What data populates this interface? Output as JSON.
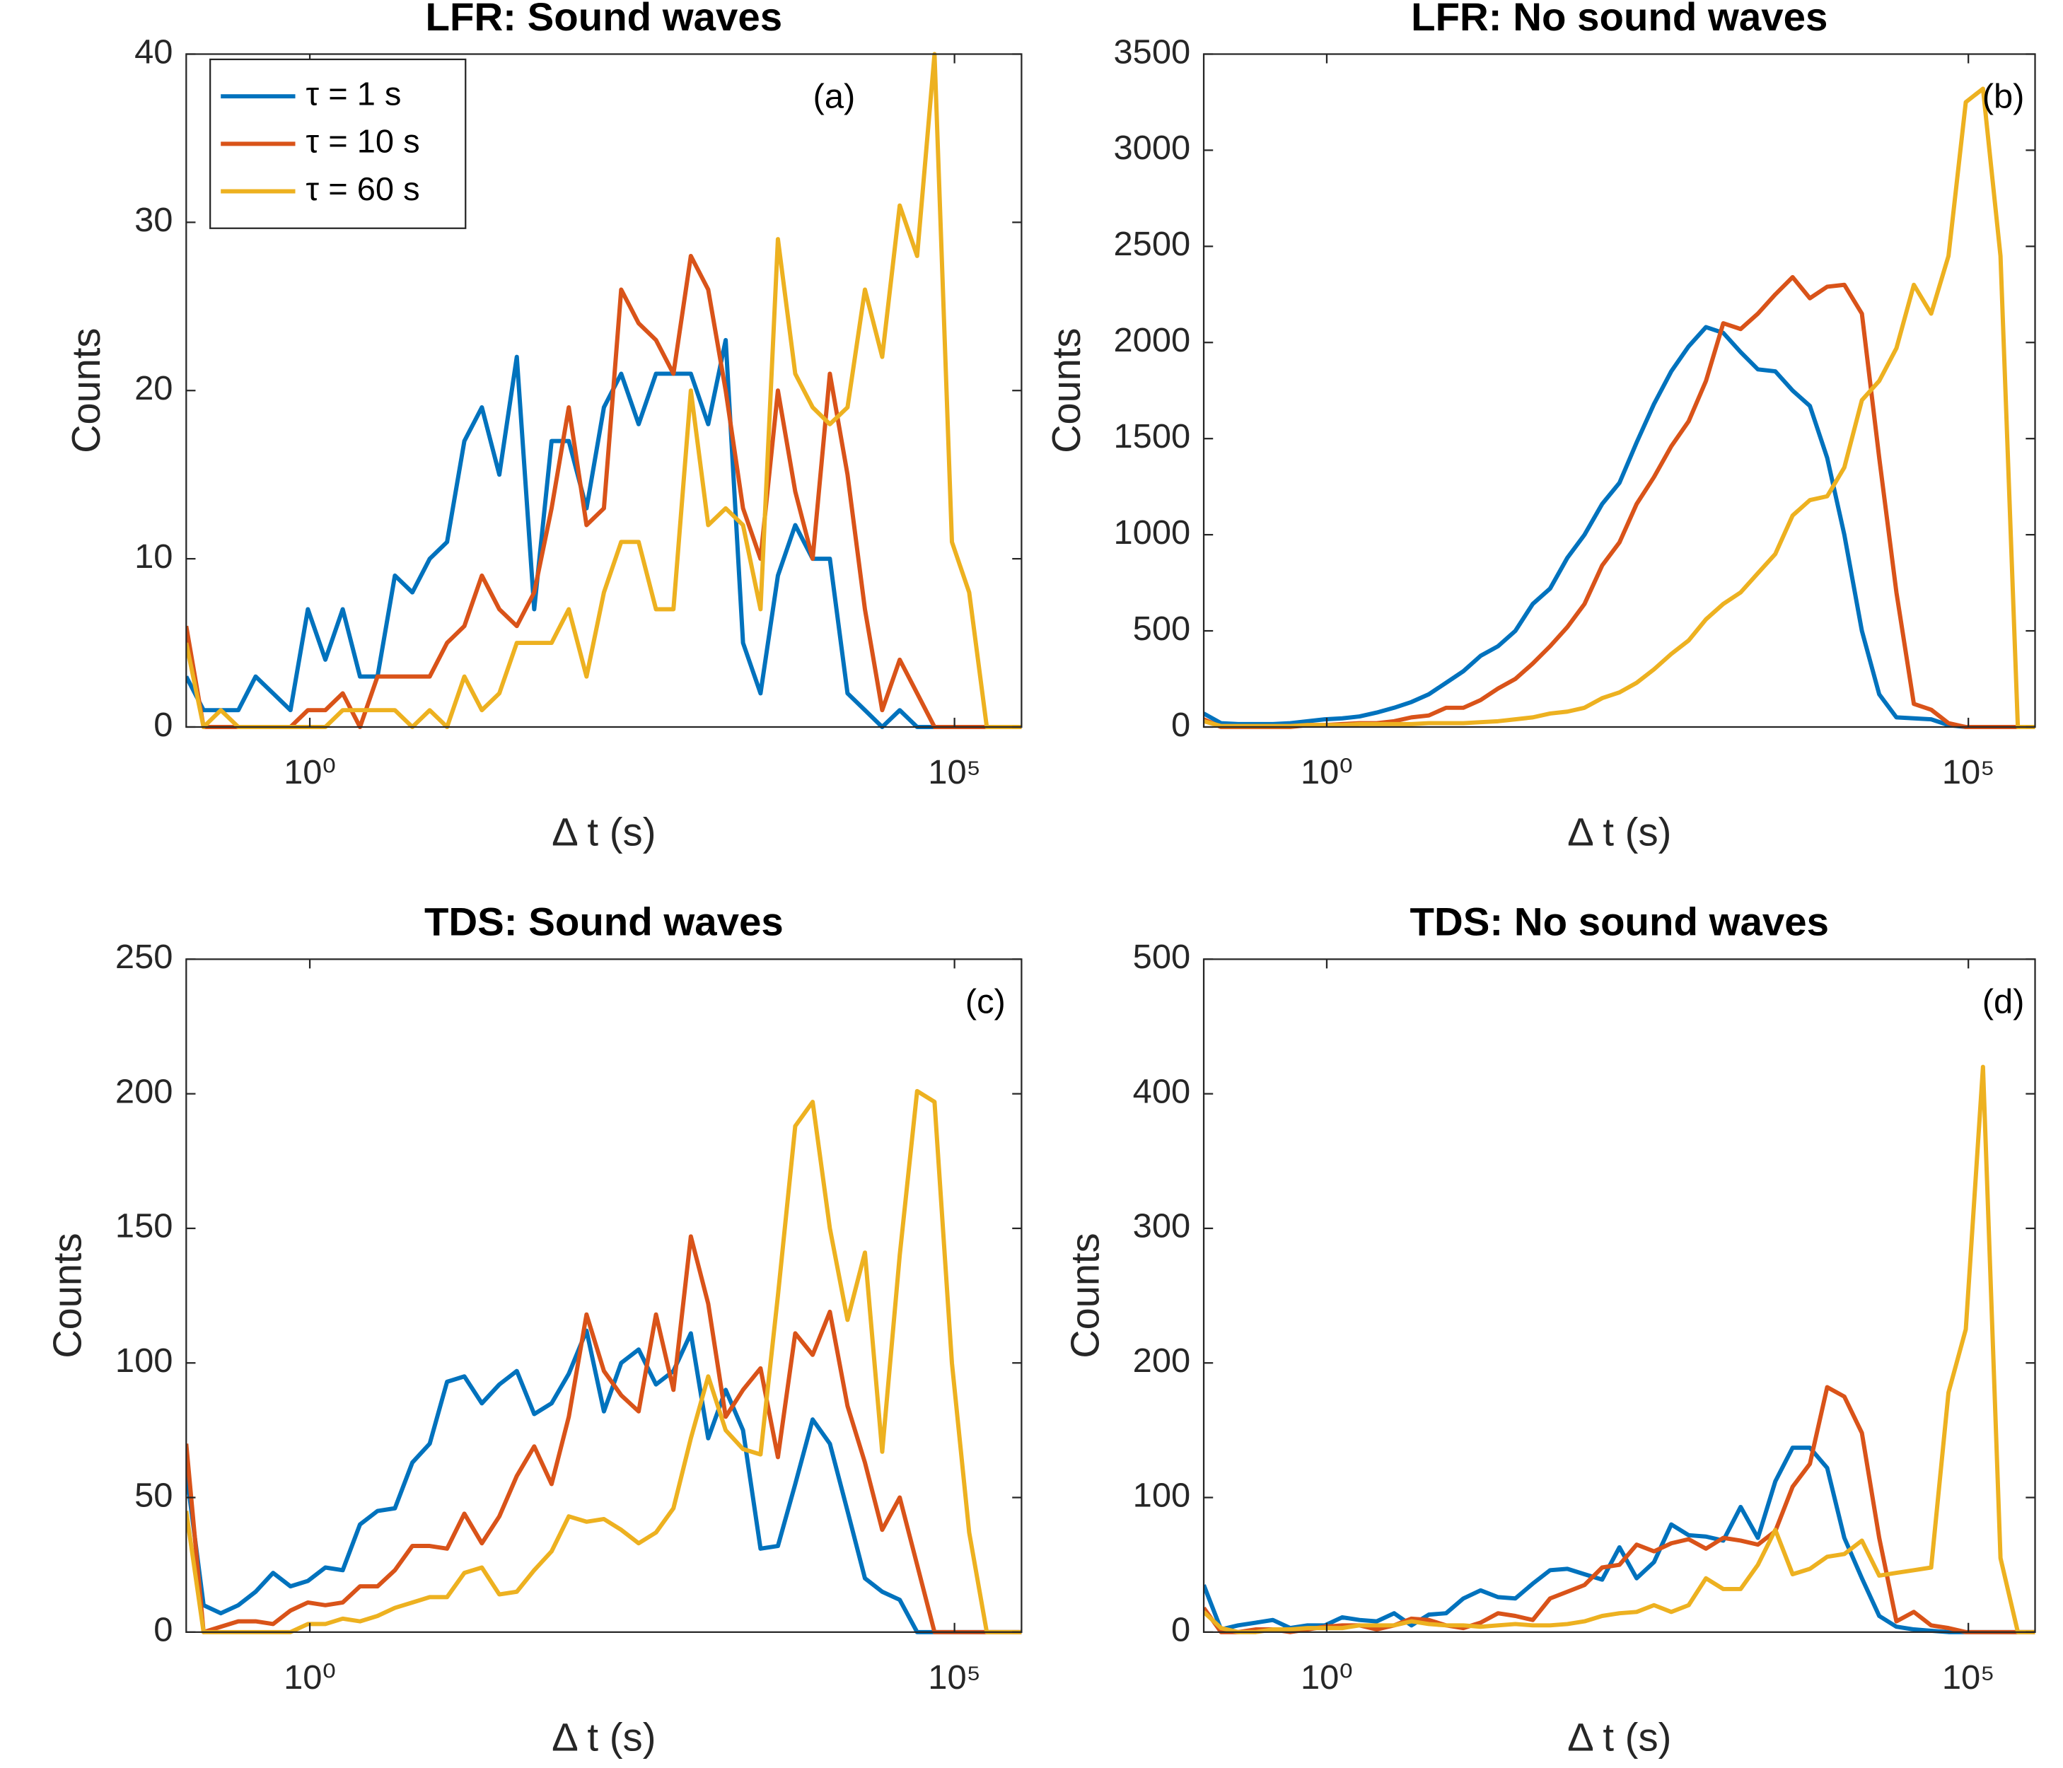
{
  "chart_data": [
    {
      "type": "line",
      "title": "LFR: Sound waves",
      "xlabel": "Δ t (s)",
      "ylabel": "Counts",
      "annotation": "(a)",
      "legend": "upper left",
      "xscale": "log",
      "xlim": [
        0.11,
        331000
      ],
      "xticks": [
        {
          "value": 1,
          "label": "10⁰"
        },
        {
          "value": 100000,
          "label": "10⁵"
        }
      ],
      "ylim": [
        0,
        40
      ],
      "yticks": [
        0,
        10,
        20,
        30,
        40
      ],
      "x": [
        0.11,
        0.15,
        0.204,
        0.279,
        0.38,
        0.519,
        0.708,
        0.966,
        1.32,
        1.8,
        2.45,
        3.35,
        4.57,
        6.24,
        8.51,
        11.6,
        15.8,
        21.6,
        29.5,
        40.3,
        55.0,
        75.0,
        102,
        140,
        191,
        260,
        355,
        484,
        661,
        902,
        1230,
        1680,
        2290,
        3130,
        4270,
        5820,
        7940,
        10800,
        14800,
        20200,
        27500,
        37600,
        51300,
        70000,
        95500,
        130000,
        178000,
        243000,
        331000
      ],
      "series": [
        {
          "name": "τ = 1 s",
          "color": "#0072BD",
          "values": [
            3,
            1,
            1,
            1,
            3,
            2,
            1,
            7,
            4,
            7,
            3,
            3,
            9,
            8,
            10,
            11,
            17,
            19,
            15,
            22,
            7,
            17,
            17,
            13,
            19,
            21,
            18,
            21,
            21,
            21,
            18,
            23,
            5,
            2,
            9,
            12,
            10,
            10,
            2,
            1,
            0,
            1,
            0,
            0,
            0,
            0,
            0,
            0,
            0
          ]
        },
        {
          "name": "τ = 10 s",
          "color": "#D95319",
          "values": [
            6,
            0,
            0,
            0,
            0,
            0,
            0,
            1,
            1,
            2,
            0,
            3,
            3,
            3,
            3,
            5,
            6,
            9,
            7,
            6,
            8,
            13,
            19,
            12,
            13,
            26,
            24,
            23,
            21,
            28,
            26,
            20,
            13,
            10,
            20,
            14,
            10,
            21,
            15,
            7,
            1,
            4,
            2,
            0,
            0,
            0,
            0,
            0,
            0
          ]
        },
        {
          "name": "τ = 60 s",
          "color": "#EDB120",
          "values": [
            5,
            0,
            1,
            0,
            0,
            0,
            0,
            0,
            0,
            1,
            1,
            1,
            1,
            0,
            1,
            0,
            3,
            1,
            2,
            5,
            5,
            5,
            7,
            3,
            8,
            11,
            11,
            7,
            7,
            20,
            12,
            13,
            12,
            7,
            29,
            21,
            19,
            18,
            19,
            26,
            22,
            31,
            28,
            40,
            11,
            8,
            0,
            0,
            0
          ]
        }
      ]
    },
    {
      "type": "line",
      "title": "LFR: No sound waves",
      "xlabel": "Δ t (s)",
      "ylabel": "Counts",
      "annotation": "(b)",
      "xscale": "log",
      "xlim": [
        0.11,
        331000
      ],
      "xticks": [
        {
          "value": 1,
          "label": "10⁰"
        },
        {
          "value": 100000,
          "label": "10⁵"
        }
      ],
      "ylim": [
        0,
        3500
      ],
      "yticks": [
        0,
        500,
        1000,
        1500,
        2000,
        2500,
        3000,
        3500
      ],
      "x": [
        0.11,
        0.15,
        0.204,
        0.279,
        0.38,
        0.519,
        0.708,
        0.966,
        1.32,
        1.8,
        2.45,
        3.35,
        4.57,
        6.24,
        8.51,
        11.6,
        15.8,
        21.6,
        29.5,
        40.3,
        55.0,
        75.0,
        102,
        140,
        191,
        260,
        355,
        484,
        661,
        902,
        1230,
        1680,
        2290,
        3130,
        4270,
        5820,
        7940,
        10800,
        14800,
        20200,
        27500,
        37600,
        51300,
        70000,
        95500,
        130000,
        178000,
        243000,
        331000
      ],
      "series": [
        {
          "color": "#0072BD",
          "values": [
            70,
            20,
            15,
            15,
            15,
            20,
            30,
            40,
            45,
            55,
            75,
            100,
            130,
            170,
            230,
            290,
            370,
            420,
            500,
            640,
            720,
            880,
            1000,
            1160,
            1270,
            1480,
            1680,
            1850,
            1980,
            2080,
            2050,
            1950,
            1860,
            1850,
            1750,
            1670,
            1400,
            1000,
            500,
            170,
            50,
            45,
            40,
            10,
            0,
            0,
            0,
            0,
            0
          ]
        },
        {
          "color": "#D95319",
          "values": [
            40,
            0,
            0,
            0,
            0,
            0,
            10,
            10,
            15,
            20,
            20,
            30,
            50,
            60,
            100,
            100,
            140,
            200,
            250,
            330,
            420,
            520,
            640,
            840,
            960,
            1160,
            1300,
            1460,
            1590,
            1800,
            2100,
            2070,
            2150,
            2250,
            2340,
            2230,
            2290,
            2300,
            2150,
            1400,
            700,
            120,
            90,
            20,
            0,
            0,
            0,
            0,
            0
          ]
        },
        {
          "color": "#EDB120",
          "values": [
            30,
            5,
            5,
            5,
            5,
            5,
            10,
            10,
            10,
            15,
            15,
            15,
            15,
            20,
            20,
            20,
            25,
            30,
            40,
            50,
            70,
            80,
            100,
            150,
            180,
            230,
            300,
            380,
            450,
            560,
            640,
            700,
            800,
            900,
            1100,
            1180,
            1200,
            1350,
            1700,
            1800,
            1970,
            2300,
            2150,
            2450,
            3250,
            3320,
            2450,
            0,
            0
          ]
        }
      ]
    },
    {
      "type": "line",
      "title": "TDS: Sound waves",
      "xlabel": "Δ t (s)",
      "ylabel": "Counts",
      "annotation": "(c)",
      "xscale": "log",
      "xlim": [
        0.11,
        331000
      ],
      "xticks": [
        {
          "value": 1,
          "label": "10⁰"
        },
        {
          "value": 100000,
          "label": "10⁵"
        }
      ],
      "ylim": [
        0,
        250
      ],
      "yticks": [
        0,
        50,
        100,
        150,
        200,
        250
      ],
      "x": [
        0.11,
        0.15,
        0.204,
        0.279,
        0.38,
        0.519,
        0.708,
        0.966,
        1.32,
        1.8,
        2.45,
        3.35,
        4.57,
        6.24,
        8.51,
        11.6,
        15.8,
        21.6,
        29.5,
        40.3,
        55.0,
        75.0,
        102,
        140,
        191,
        260,
        355,
        484,
        661,
        902,
        1230,
        1680,
        2290,
        3130,
        4270,
        5820,
        7940,
        10800,
        14800,
        20200,
        27500,
        37600,
        51300,
        70000,
        95500,
        130000,
        178000,
        243000,
        331000
      ],
      "series": [
        {
          "color": "#0072BD",
          "values": [
            60,
            10,
            7,
            10,
            15,
            22,
            17,
            19,
            24,
            23,
            40,
            45,
            46,
            63,
            70,
            93,
            95,
            85,
            92,
            97,
            81,
            85,
            96,
            112,
            82,
            100,
            105,
            92,
            97,
            111,
            72,
            90,
            75,
            31,
            32,
            55,
            79,
            70,
            45,
            20,
            15,
            12,
            0,
            0,
            0,
            0,
            0,
            0,
            0
          ]
        },
        {
          "color": "#D95319",
          "values": [
            70,
            0,
            2,
            4,
            4,
            3,
            8,
            11,
            10,
            11,
            17,
            17,
            23,
            32,
            32,
            31,
            44,
            33,
            43,
            58,
            69,
            55,
            80,
            118,
            97,
            88,
            82,
            118,
            90,
            147,
            122,
            80,
            90,
            98,
            65,
            111,
            103,
            119,
            84,
            63,
            38,
            50,
            25,
            0,
            0,
            0,
            0,
            0,
            0
          ]
        },
        {
          "color": "#EDB120",
          "values": [
            45,
            0,
            0,
            0,
            0,
            0,
            0,
            3,
            3,
            5,
            4,
            6,
            9,
            11,
            13,
            13,
            22,
            24,
            14,
            15,
            23,
            30,
            43,
            41,
            42,
            38,
            33,
            37,
            46,
            72,
            95,
            75,
            68,
            66,
            125,
            188,
            197,
            150,
            116,
            141,
            67,
            140,
            201,
            197,
            100,
            37,
            0,
            0,
            0
          ]
        }
      ]
    },
    {
      "type": "line",
      "title": "TDS: No sound waves",
      "xlabel": "Δ t (s)",
      "ylabel": "Counts",
      "annotation": "(d)",
      "xscale": "log",
      "xlim": [
        0.11,
        331000
      ],
      "xticks": [
        {
          "value": 1,
          "label": "10⁰"
        },
        {
          "value": 100000,
          "label": "10⁵"
        }
      ],
      "ylim": [
        0,
        500
      ],
      "yticks": [
        0,
        100,
        200,
        300,
        400,
        500
      ],
      "x": [
        0.11,
        0.15,
        0.204,
        0.279,
        0.38,
        0.519,
        0.708,
        0.966,
        1.32,
        1.8,
        2.45,
        3.35,
        4.57,
        6.24,
        8.51,
        11.6,
        15.8,
        21.6,
        29.5,
        40.3,
        55.0,
        75.0,
        102,
        140,
        191,
        260,
        355,
        484,
        661,
        902,
        1230,
        1680,
        2290,
        3130,
        4270,
        5820,
        7940,
        10800,
        14800,
        20200,
        27500,
        37600,
        51300,
        70000,
        95500,
        130000,
        178000,
        243000,
        331000
      ],
      "series": [
        {
          "color": "#0072BD",
          "values": [
            35,
            2,
            5,
            7,
            9,
            3,
            5,
            5,
            11,
            9,
            8,
            14,
            5,
            13,
            14,
            25,
            31,
            26,
            25,
            36,
            46,
            47,
            43,
            39,
            63,
            40,
            52,
            80,
            72,
            71,
            68,
            93,
            70,
            112,
            137,
            137,
            122,
            70,
            40,
            12,
            4,
            2,
            1,
            0,
            0,
            0,
            0,
            0,
            0
          ]
        },
        {
          "color": "#D95319",
          "values": [
            18,
            0,
            0,
            2,
            2,
            0,
            2,
            4,
            5,
            5,
            2,
            5,
            10,
            9,
            5,
            3,
            7,
            14,
            12,
            9,
            25,
            30,
            35,
            48,
            50,
            65,
            60,
            66,
            69,
            62,
            70,
            68,
            65,
            75,
            108,
            125,
            182,
            175,
            148,
            70,
            8,
            15,
            5,
            3,
            0,
            0,
            0,
            0,
            0
          ]
        },
        {
          "color": "#EDB120",
          "values": [
            15,
            3,
            0,
            0,
            2,
            2,
            3,
            3,
            3,
            5,
            5,
            5,
            8,
            6,
            5,
            5,
            4,
            5,
            6,
            5,
            5,
            6,
            8,
            12,
            14,
            15,
            20,
            15,
            20,
            40,
            32,
            32,
            50,
            76,
            43,
            47,
            56,
            58,
            68,
            42,
            44,
            46,
            48,
            178,
            225,
            420,
            55,
            0,
            0
          ]
        }
      ]
    }
  ]
}
